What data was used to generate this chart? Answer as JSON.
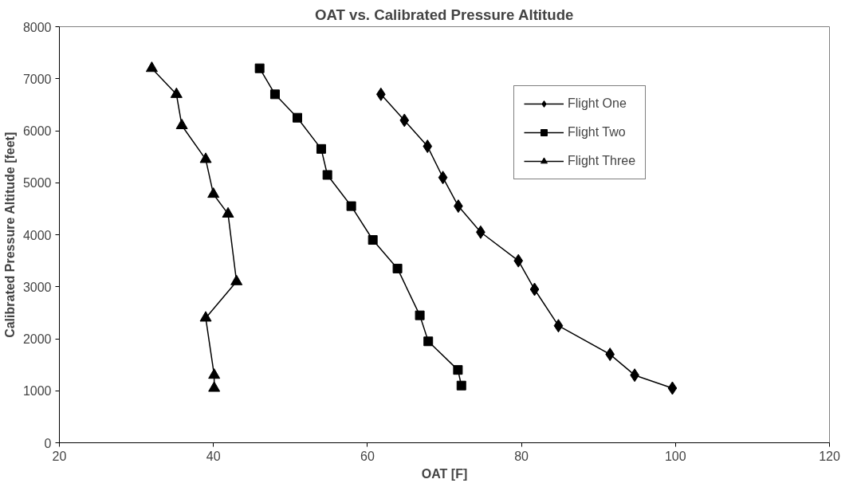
{
  "chart_data": {
    "type": "line",
    "title": "OAT vs. Calibrated Pressure Altitude",
    "xlabel": "OAT [F]",
    "ylabel": "Calibrated Pressure Altitude [feet]",
    "xlim": [
      20,
      120
    ],
    "xticks": [
      20,
      40,
      60,
      80,
      100,
      120
    ],
    "ylim": [
      0,
      8000
    ],
    "yticks": [
      0,
      1000,
      2000,
      3000,
      4000,
      5000,
      6000,
      7000,
      8000
    ],
    "grid": false,
    "legend": "right",
    "line_style": "solid",
    "series": [
      {
        "name": "Flight One",
        "color": "#000000",
        "marker": "diamond",
        "x": [
          61.75,
          64.8,
          67.8,
          69.8,
          71.8,
          74.7,
          79.6,
          81.7,
          84.8,
          91.5,
          94.7,
          99.6
        ],
        "values": [
          6700,
          6200,
          5700,
          5100,
          4550,
          4050,
          3500,
          2950,
          2250,
          1700,
          1300,
          1050
        ]
      },
      {
        "name": "Flight Two",
        "color": "#000000",
        "marker": "square",
        "x": [
          46.0,
          48.0,
          50.9,
          54.0,
          54.8,
          57.9,
          60.7,
          63.9,
          66.8,
          67.9,
          71.75,
          72.2
        ],
        "values": [
          7200,
          6700,
          6250,
          5650,
          5150,
          4550,
          3900,
          3350,
          2450,
          1950,
          1400,
          1100
        ]
      },
      {
        "name": "Flight Three",
        "color": "#000000",
        "marker": "triangle",
        "x": [
          32.0,
          35.2,
          35.9,
          39.0,
          40.0,
          41.9,
          43.0,
          39.0,
          40.1,
          40.1
        ],
        "values": [
          7200,
          6700,
          6100,
          5450,
          4780,
          4400,
          3100,
          2400,
          1300,
          1050
        ]
      }
    ]
  }
}
